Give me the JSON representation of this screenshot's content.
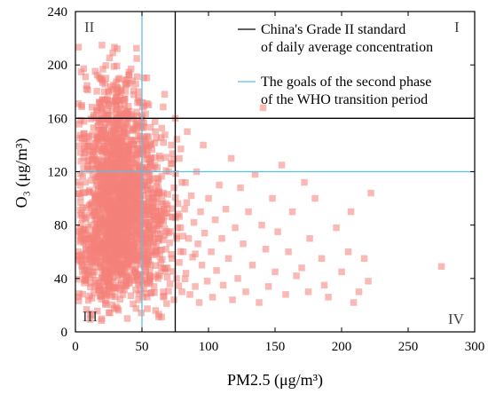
{
  "chart_data": {
    "type": "scatter",
    "xlabel": "PM2.5 (μg/m³)",
    "ylabel": "O₃ (μg/m³)",
    "xlim": [
      0,
      300
    ],
    "ylim": [
      0,
      240
    ],
    "x_ticks": [
      0,
      50,
      100,
      150,
      200,
      250,
      300
    ],
    "y_ticks": [
      0,
      40,
      80,
      120,
      160,
      200,
      240
    ],
    "grid": false,
    "marker": "square",
    "point_color": "#f4827a",
    "quadrant_labels": {
      "top_left": "II",
      "top_right": "I",
      "bottom_left": "III",
      "bottom_right": "IV"
    },
    "reference_lines": [
      {
        "name": "China's Grade II standard of daily average concentration",
        "color": "#000000",
        "x": 75,
        "y": 160
      },
      {
        "name": "The goals of the second phase of the WHO transition period",
        "color": "#5bc0e6",
        "x": 50,
        "y": 120
      }
    ],
    "legend": {
      "placement": "top-right",
      "entries": [
        {
          "lines": [
            "China's Grade II standard",
            "of daily average concentration"
          ],
          "color": "#000000"
        },
        {
          "lines": [
            "The goals of the second phase",
            "of the WHO transition period"
          ],
          "color": "#5bc0e6"
        }
      ]
    },
    "sparse_points": [
      [
        275,
        49
      ],
      [
        222,
        104
      ],
      [
        220,
        38
      ],
      [
        217,
        55
      ],
      [
        213,
        30
      ],
      [
        209,
        22
      ],
      [
        207,
        90
      ],
      [
        205,
        60
      ],
      [
        200,
        45
      ],
      [
        196,
        78
      ],
      [
        190,
        26
      ],
      [
        187,
        35
      ],
      [
        185,
        55
      ],
      [
        180,
        100
      ],
      [
        176,
        70
      ],
      [
        175,
        30
      ],
      [
        172,
        112
      ],
      [
        170,
        48
      ],
      [
        166,
        42
      ],
      [
        163,
        90
      ],
      [
        160,
        60
      ],
      [
        158,
        28
      ],
      [
        155,
        125
      ],
      [
        152,
        75
      ],
      [
        150,
        45
      ],
      [
        148,
        100
      ],
      [
        145,
        34
      ],
      [
        143,
        62
      ],
      [
        141,
        168
      ],
      [
        140,
        80
      ],
      [
        138,
        22
      ],
      [
        135,
        118
      ],
      [
        133,
        50
      ],
      [
        130,
        90
      ],
      [
        128,
        30
      ],
      [
        126,
        66
      ],
      [
        124,
        108
      ],
      [
        122,
        40
      ],
      [
        120,
        78
      ],
      [
        118,
        24
      ],
      [
        117,
        130
      ],
      [
        115,
        55
      ],
      [
        113,
        92
      ],
      [
        111,
        35
      ],
      [
        110,
        70
      ],
      [
        108,
        110
      ],
      [
        106,
        46
      ],
      [
        105,
        84
      ],
      [
        103,
        26
      ],
      [
        102,
        60
      ],
      [
        100,
        100
      ],
      [
        99,
        38
      ],
      [
        97,
        74
      ],
      [
        96,
        140
      ],
      [
        95,
        50
      ],
      [
        94,
        90
      ],
      [
        93,
        22
      ],
      [
        92,
        66
      ],
      [
        91,
        120
      ],
      [
        90,
        34
      ],
      [
        89,
        82
      ],
      [
        88,
        56
      ],
      [
        87,
        102
      ],
      [
        86,
        28
      ],
      [
        85,
        70
      ],
      [
        84,
        150
      ],
      [
        83,
        44
      ],
      [
        82,
        92
      ],
      [
        81,
        60
      ],
      [
        80,
        112
      ],
      [
        80,
        30
      ],
      [
        79,
        78
      ],
      [
        78,
        52
      ],
      [
        78,
        130
      ],
      [
        77,
        96
      ],
      [
        76,
        40
      ],
      [
        76,
        70
      ],
      [
        75,
        160
      ],
      [
        74,
        24
      ],
      [
        74,
        108
      ],
      [
        73,
        86
      ],
      [
        72,
        58
      ],
      [
        72,
        140
      ],
      [
        71,
        36
      ],
      [
        70,
        120
      ],
      [
        70,
        74
      ],
      [
        69,
        48
      ],
      [
        68,
        96
      ],
      [
        68,
        62
      ],
      [
        67,
        178
      ],
      [
        66,
        30
      ],
      [
        66,
        104
      ],
      [
        65,
        84
      ],
      [
        64,
        52
      ],
      [
        64,
        130
      ],
      [
        63,
        70
      ],
      [
        62,
        40
      ],
      [
        62,
        112
      ],
      [
        61,
        90
      ],
      [
        60,
        60
      ],
      [
        60,
        150
      ],
      [
        59,
        34
      ],
      [
        58,
        100
      ],
      [
        58,
        76
      ],
      [
        57,
        124
      ],
      [
        56,
        46
      ],
      [
        56,
        88
      ],
      [
        55,
        170
      ],
      [
        55,
        64
      ],
      [
        54,
        106
      ],
      [
        54,
        26
      ],
      [
        53,
        140
      ],
      [
        52,
        80
      ],
      [
        52,
        54
      ],
      [
        51,
        118
      ],
      [
        51,
        96
      ],
      [
        50,
        38
      ]
    ],
    "dense_clusters": [
      {
        "center": [
          33,
          95
        ],
        "spread": [
          14,
          35
        ],
        "count": 1300
      },
      {
        "center": [
          27,
          150
        ],
        "spread": [
          10,
          28
        ],
        "count": 250
      },
      {
        "center": [
          20,
          55
        ],
        "spread": [
          10,
          18
        ],
        "count": 200
      },
      {
        "center": [
          55,
          85
        ],
        "spread": [
          12,
          32
        ],
        "count": 220
      }
    ]
  }
}
